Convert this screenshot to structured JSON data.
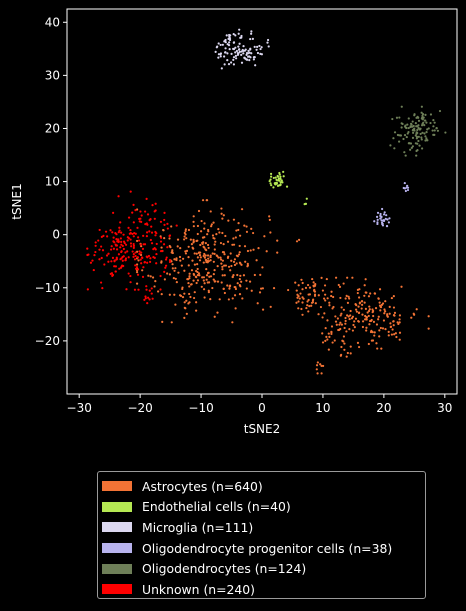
{
  "chart_data": {
    "type": "scatter",
    "xlabel": "tSNE2",
    "ylabel": "tSNE1",
    "xlim": [
      -32,
      32
    ],
    "ylim": [
      -30,
      42.5
    ],
    "xticks": [
      -30,
      -20,
      -10,
      0,
      10,
      20,
      30
    ],
    "yticks": [
      -20,
      -10,
      0,
      10,
      20,
      30,
      40
    ],
    "grid": false,
    "legend_position": "below",
    "series": [
      {
        "name": "Astrocytes (n=640)",
        "color": "#f37335",
        "clusters": [
          {
            "cx": -9,
            "cy": -5,
            "sx": 5,
            "sy": 5,
            "n": 360
          },
          {
            "cx": 17,
            "cy": -15,
            "sx": 4.5,
            "sy": 3,
            "n": 200
          },
          {
            "cx": 8,
            "cy": -11,
            "sx": 2,
            "sy": 1.5,
            "n": 50
          },
          {
            "cx": 12,
            "cy": -20,
            "sx": 1.2,
            "sy": 1.5,
            "n": 20
          },
          {
            "cx": 9.5,
            "cy": -25,
            "sx": 0.6,
            "sy": 0.6,
            "n": 8
          },
          {
            "cx": 6,
            "cy": -1,
            "sx": 0.2,
            "sy": 0.2,
            "n": 2
          }
        ]
      },
      {
        "name": "Endothelial cells (n=40)",
        "color": "#b5e853",
        "clusters": [
          {
            "cx": 2.5,
            "cy": 10,
            "sx": 0.7,
            "sy": 0.8,
            "n": 36
          },
          {
            "cx": 7,
            "cy": 6,
            "sx": 0.3,
            "sy": 0.5,
            "n": 4
          }
        ]
      },
      {
        "name": "Microglia (n=111)",
        "color": "#dcd8f0",
        "clusters": [
          {
            "cx": -3.5,
            "cy": 35,
            "sx": 2,
            "sy": 1.6,
            "n": 111
          }
        ]
      },
      {
        "name": "Oligodendrocyte progenitor cells (n=38)",
        "color": "#b8b3ee",
        "clusters": [
          {
            "cx": 19.8,
            "cy": 3,
            "sx": 0.6,
            "sy": 0.8,
            "n": 30
          },
          {
            "cx": 23.5,
            "cy": 8.8,
            "sx": 0.3,
            "sy": 0.4,
            "n": 8
          }
        ]
      },
      {
        "name": "Oligodendrocytes (n=124)",
        "color": "#6e7f58",
        "clusters": [
          {
            "cx": 25.5,
            "cy": 19.5,
            "sx": 2,
            "sy": 2,
            "n": 124
          }
        ]
      },
      {
        "name": "Unknown (n=240)",
        "color": "#ff0000",
        "clusters": [
          {
            "cx": -22,
            "cy": -3,
            "sx": 3,
            "sy": 3.2,
            "n": 200
          },
          {
            "cx": -18,
            "cy": 3,
            "sx": 2.5,
            "sy": 2.5,
            "n": 30
          },
          {
            "cx": -18.5,
            "cy": -11.5,
            "sx": 0.4,
            "sy": 0.6,
            "n": 10
          }
        ]
      }
    ]
  }
}
